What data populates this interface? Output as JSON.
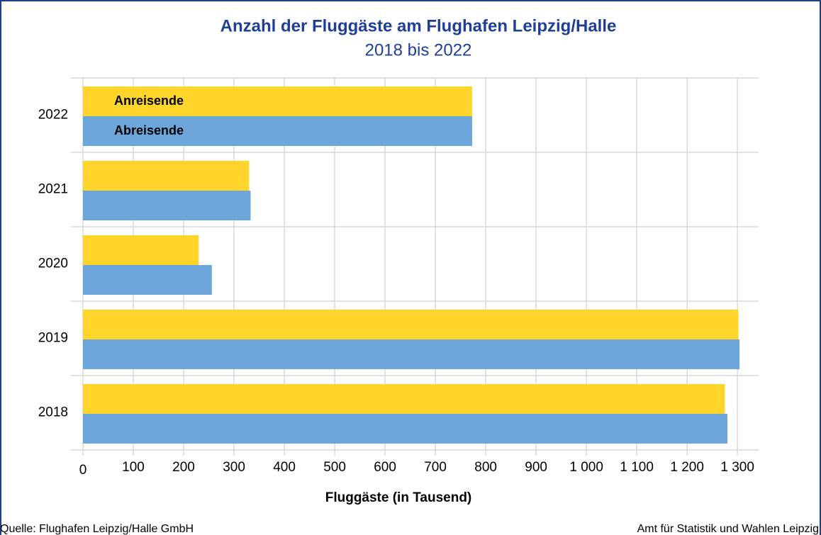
{
  "chart_data": {
    "type": "hbar",
    "title": "Anzahl der Fluggäste am Flughafen Leipzig/Halle",
    "subtitle": "2018 bis 2022",
    "xlabel": "Fluggäste (in Tausend)",
    "categories": [
      "2022",
      "2021",
      "2020",
      "2019",
      "2018"
    ],
    "series": [
      {
        "name": "Anreisende",
        "color": "#FFD52B",
        "values": [
          773,
          330,
          230,
          1302,
          1275
        ]
      },
      {
        "name": "Abreisende",
        "color": "#6CA6DA",
        "values": [
          773,
          333,
          256,
          1304,
          1280
        ]
      }
    ],
    "xlim": [
      0,
      1342
    ],
    "xticks": [
      0,
      100,
      200,
      300,
      400,
      500,
      600,
      700,
      800,
      900,
      {
        "value": 1000,
        "label": "1 000"
      },
      {
        "value": 1100,
        "label": "1 100"
      },
      {
        "value": 1200,
        "label": "1 200"
      },
      {
        "value": 1300,
        "label": "1 300"
      }
    ],
    "grid": true,
    "source": "Quelle: Flughafen Leipzig/Halle GmbH",
    "credit": "Amt für Statistik und Wahlen Leipzig"
  }
}
